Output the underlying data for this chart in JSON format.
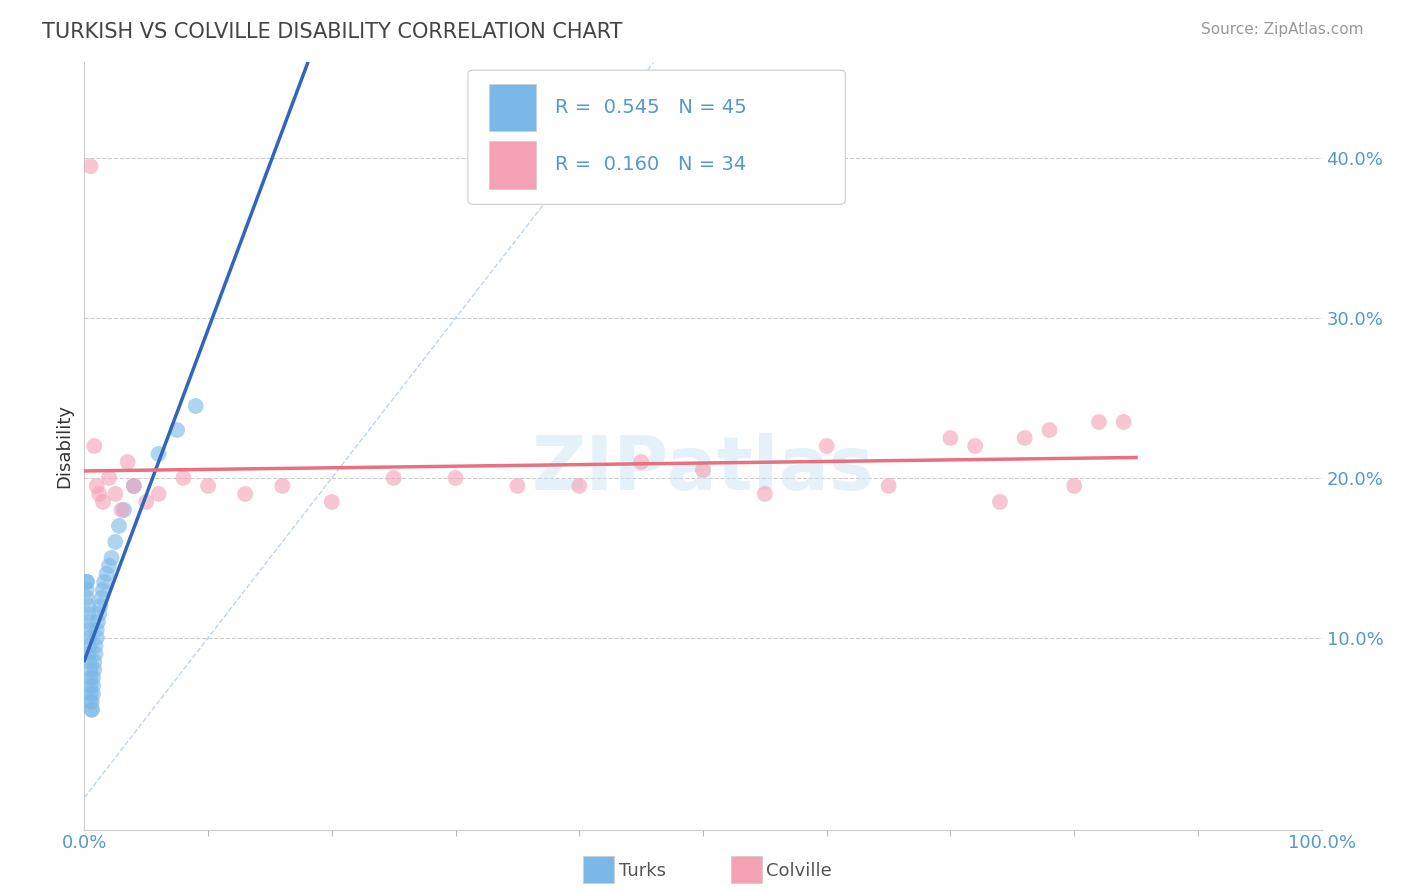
{
  "title": "TURKISH VS COLVILLE DISABILITY CORRELATION CHART",
  "source": "Source: ZipAtlas.com",
  "ylabel": "Disability",
  "xlim": [
    0,
    1.0
  ],
  "ylim": [
    -0.02,
    0.46
  ],
  "y_ticks": [
    0.1,
    0.2,
    0.3,
    0.4
  ],
  "y_tick_labels": [
    "10.0%",
    "20.0%",
    "30.0%",
    "40.0%"
  ],
  "x_tick_labels": [
    "0.0%",
    "100.0%"
  ],
  "legend_R1": "R = 0.545",
  "legend_N1": "N = 45",
  "legend_R2": "R = 0.160",
  "legend_N2": "N = 34",
  "blue_color": "#7ab8e8",
  "pink_color": "#f4a0b5",
  "blue_line_color": "#3366bb",
  "pink_line_color": "#e87080",
  "watermark": "ZIPatlas",
  "turks_x": [
    0.002,
    0.002,
    0.002,
    0.002,
    0.003,
    0.003,
    0.003,
    0.003,
    0.004,
    0.004,
    0.004,
    0.004,
    0.005,
    0.005,
    0.005,
    0.005,
    0.005,
    0.006,
    0.006,
    0.006,
    0.007,
    0.007,
    0.007,
    0.008,
    0.008,
    0.009,
    0.009,
    0.01,
    0.01,
    0.011,
    0.012,
    0.013,
    0.014,
    0.015,
    0.016,
    0.018,
    0.02,
    0.022,
    0.025,
    0.028,
    0.032,
    0.04,
    0.06,
    0.075,
    0.09
  ],
  "turks_y": [
    0.135,
    0.135,
    0.13,
    0.125,
    0.12,
    0.115,
    0.11,
    0.105,
    0.1,
    0.095,
    0.09,
    0.085,
    0.08,
    0.075,
    0.07,
    0.065,
    0.06,
    0.055,
    0.055,
    0.06,
    0.065,
    0.07,
    0.075,
    0.08,
    0.085,
    0.09,
    0.095,
    0.1,
    0.105,
    0.11,
    0.115,
    0.12,
    0.125,
    0.13,
    0.135,
    0.14,
    0.145,
    0.15,
    0.16,
    0.17,
    0.18,
    0.195,
    0.215,
    0.23,
    0.245
  ],
  "colville_x": [
    0.005,
    0.008,
    0.01,
    0.012,
    0.015,
    0.02,
    0.025,
    0.03,
    0.035,
    0.04,
    0.05,
    0.06,
    0.08,
    0.1,
    0.13,
    0.16,
    0.2,
    0.25,
    0.3,
    0.35,
    0.4,
    0.45,
    0.5,
    0.55,
    0.6,
    0.65,
    0.7,
    0.72,
    0.74,
    0.76,
    0.78,
    0.8,
    0.82,
    0.84
  ],
  "colville_y": [
    0.395,
    0.22,
    0.195,
    0.19,
    0.185,
    0.2,
    0.19,
    0.18,
    0.21,
    0.195,
    0.185,
    0.19,
    0.2,
    0.195,
    0.19,
    0.195,
    0.185,
    0.2,
    0.2,
    0.195,
    0.195,
    0.21,
    0.205,
    0.19,
    0.22,
    0.195,
    0.225,
    0.22,
    0.185,
    0.225,
    0.23,
    0.195,
    0.235,
    0.235
  ],
  "background_color": "#ffffff",
  "grid_color": "#cccccc",
  "axis_color": "#5599cc"
}
